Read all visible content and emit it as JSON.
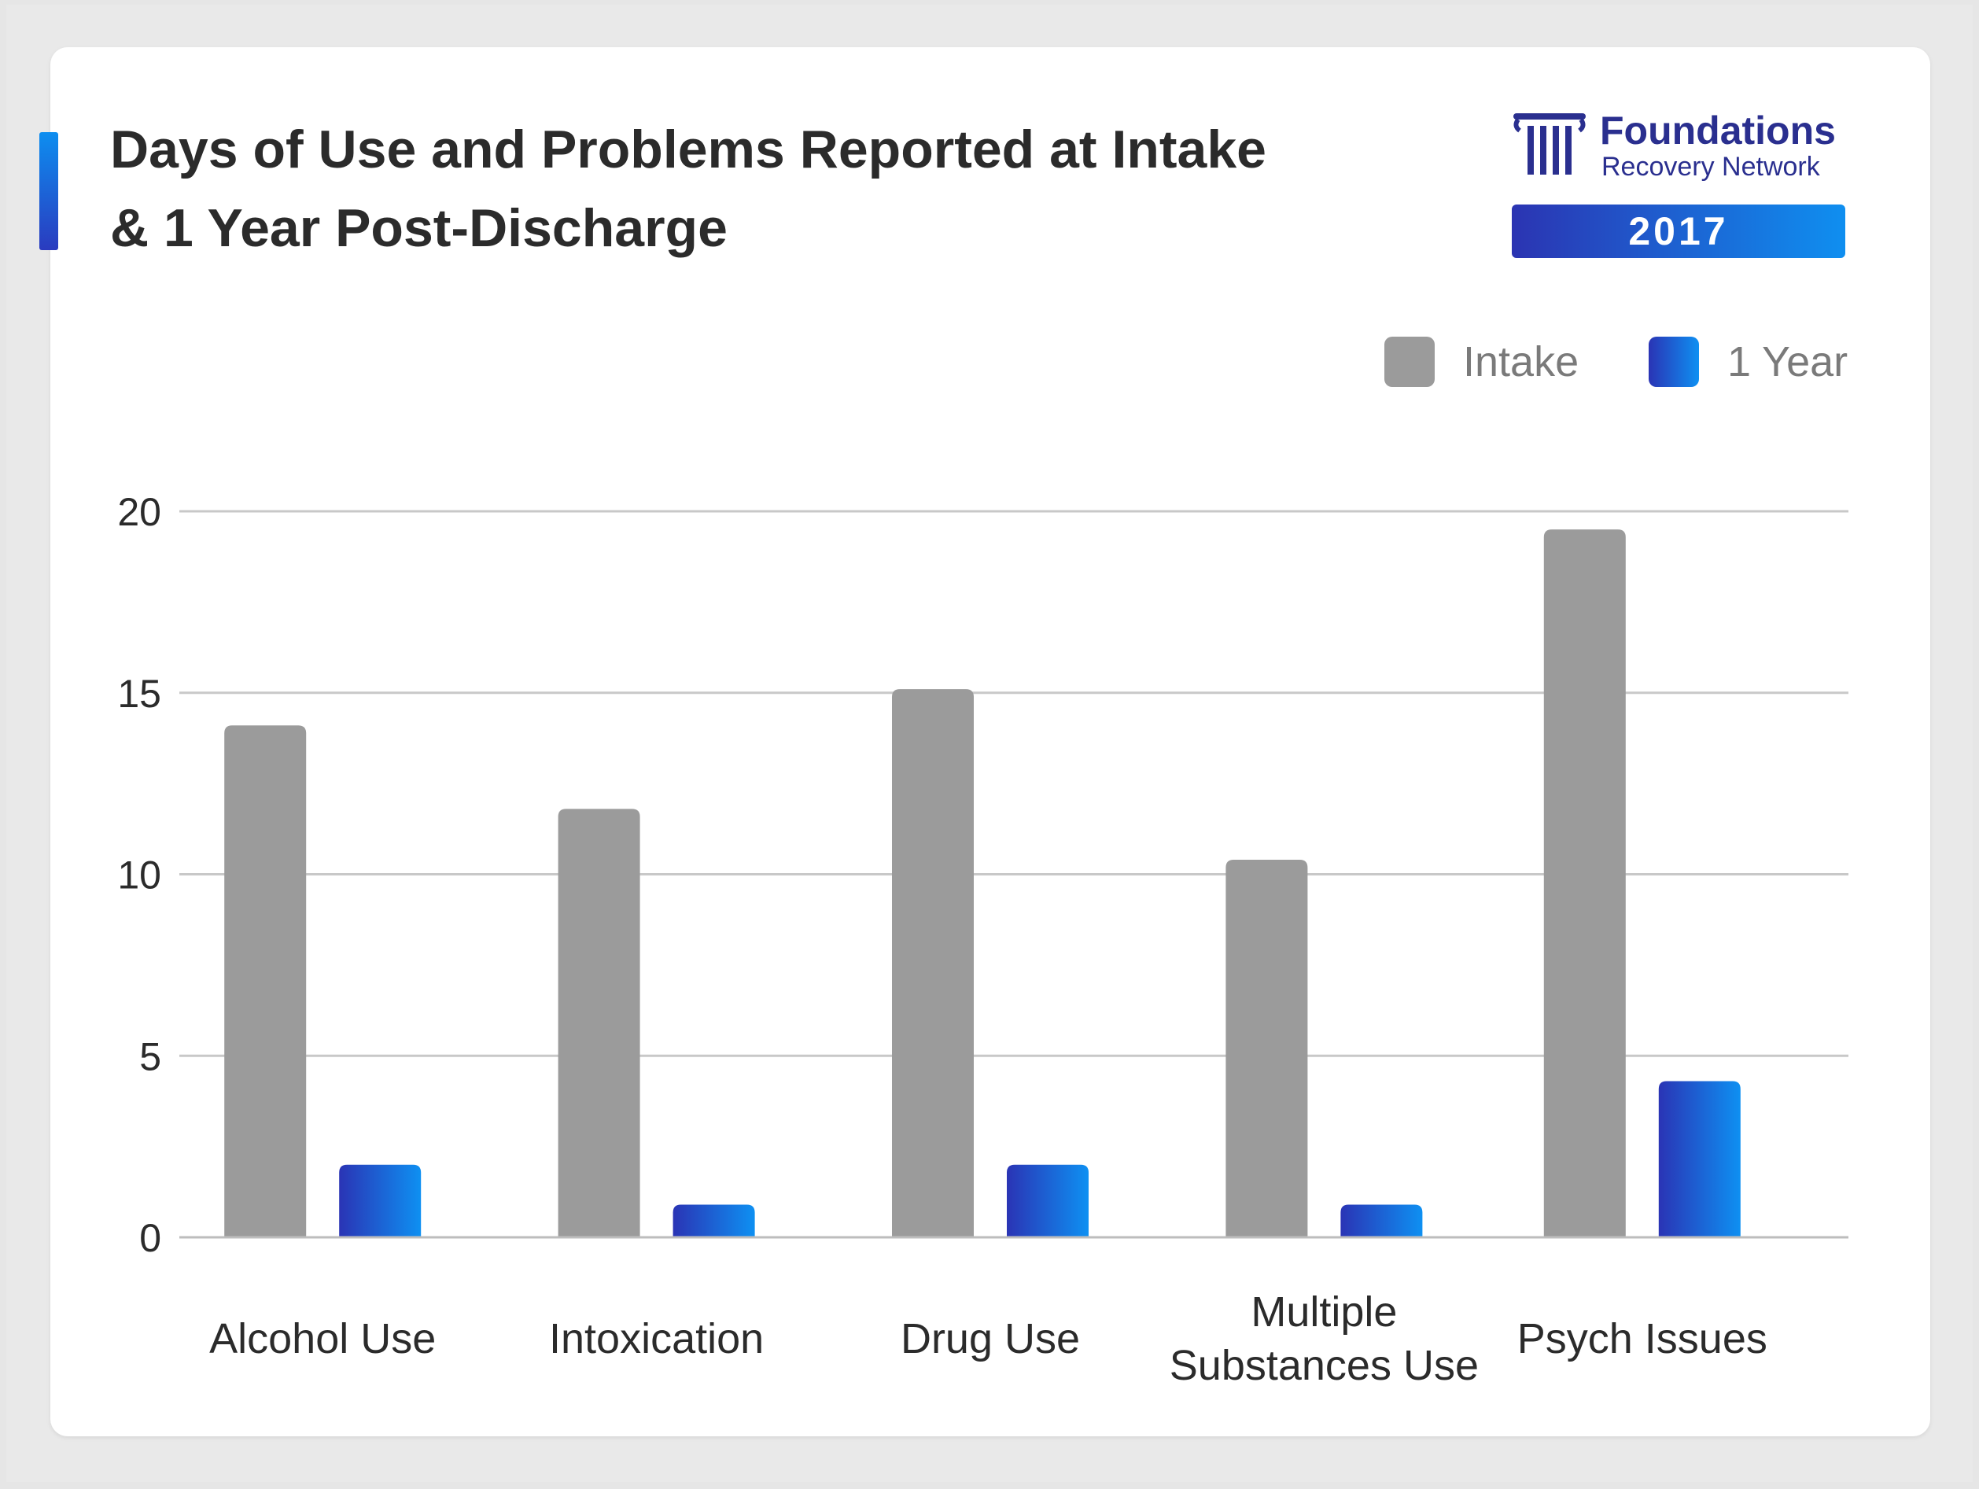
{
  "title": {
    "line1": "Days of Use and Problems Reported at Intake",
    "line2": "& 1 Year Post-Discharge"
  },
  "logo": {
    "name": "Foundations",
    "subtitle": "Recovery Network",
    "year": "2017",
    "icon": "column-pillar-icon"
  },
  "colors": {
    "intake": "#9b9b9b",
    "one_year_start": "#2a34b5",
    "one_year_end": "#0e90f2",
    "brand": "#2a2f8f",
    "grid": "#c8c8c8",
    "text": "#2b2b2b"
  },
  "legend": [
    {
      "label": "Intake",
      "key": "intake"
    },
    {
      "label": "1 Year",
      "key": "one_year"
    }
  ],
  "chart_data": {
    "type": "bar",
    "title": "Days of Use and Problems Reported at Intake & 1 Year Post-Discharge",
    "categories": [
      [
        "Alcohol Use"
      ],
      [
        "Intoxication"
      ],
      [
        "Drug Use"
      ],
      [
        "Multiple",
        "Substances Use"
      ],
      [
        "Psych Issues"
      ]
    ],
    "series": [
      {
        "name": "Intake",
        "values": [
          14.1,
          11.8,
          15.1,
          10.4,
          19.5
        ]
      },
      {
        "name": "1 Year",
        "values": [
          2.0,
          0.9,
          2.0,
          0.9,
          4.3
        ]
      }
    ],
    "yticks": [
      "0",
      "5",
      "10",
      "15",
      "20"
    ],
    "ylim": [
      0,
      20
    ],
    "xlabel": "",
    "ylabel": "",
    "grid": true,
    "legend_position": "top-right"
  }
}
